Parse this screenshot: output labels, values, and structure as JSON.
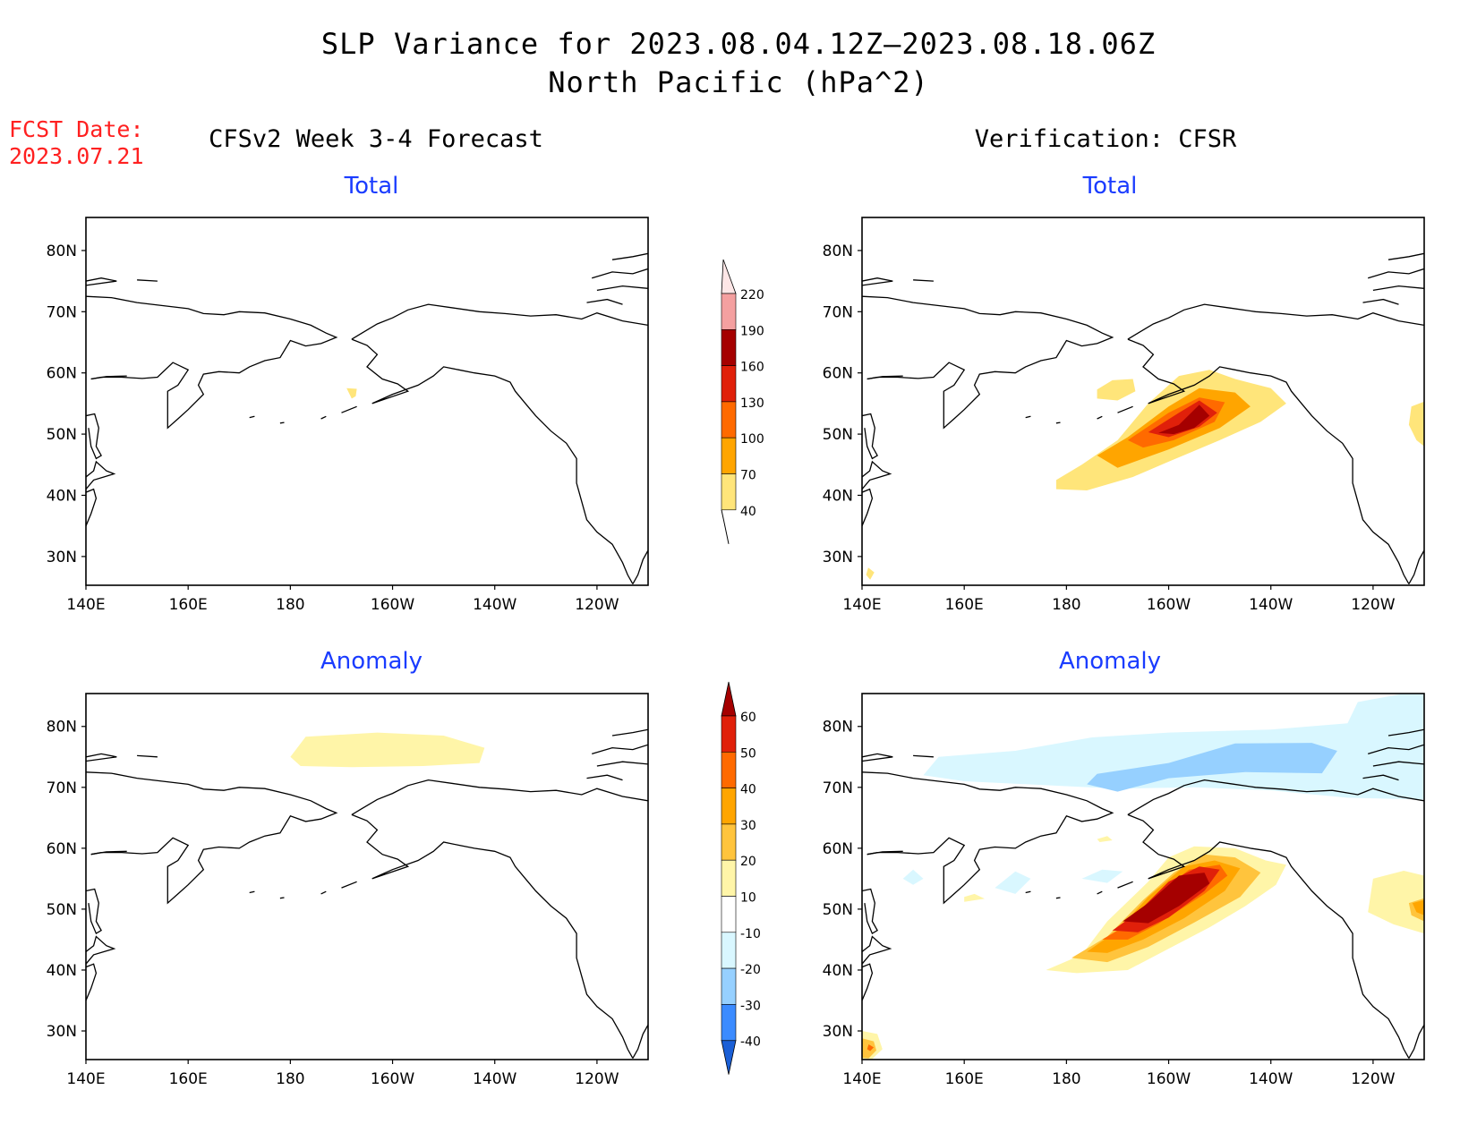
{
  "header": {
    "title_line1": "SLP Variance for 2023.08.04.12Z–2023.08.18.06Z",
    "title_line2": "North Pacific (hPa^2)"
  },
  "fcst_date": {
    "label": "FCST Date:",
    "value": "2023.07.21"
  },
  "columns": {
    "left": "CFSv2 Week 3-4 Forecast",
    "right": "Verification: CFSR"
  },
  "panels": {
    "total_label": "Total",
    "anomaly_label": "Anomaly",
    "lat_ticks": [
      "80N",
      "70N",
      "60N",
      "50N",
      "40N",
      "30N"
    ],
    "lon_ticks": [
      "140E",
      "160E",
      "180",
      "160W",
      "140W",
      "120W"
    ]
  },
  "colorbars": {
    "total": {
      "labels": [
        "220",
        "190",
        "160",
        "130",
        "100",
        "70",
        "40"
      ],
      "colors": [
        "#fde6e6",
        "#f4a0a0",
        "#a50000",
        "#e0200a",
        "#ff6a00",
        "#ffa500",
        "#ffe57a"
      ]
    },
    "anomaly": {
      "labels": [
        "60",
        "50",
        "40",
        "30",
        "20",
        "10",
        "-10",
        "-20",
        "-30",
        "-40"
      ],
      "colors": [
        "#a50000",
        "#e0200a",
        "#ff6a00",
        "#ffa500",
        "#ffc43d",
        "#fff5a8",
        "#ffffff",
        "#d9f7ff",
        "#96d0ff",
        "#3b8bff",
        "#1a5fd6"
      ]
    }
  },
  "map_colors": {
    "yellow": "#ffe57a",
    "light_yellow": "#fff5a8",
    "orange": "#ffa500",
    "dark_orange": "#ff6a00",
    "red": "#e0200a",
    "dark_red": "#a50000",
    "light_blue": "#d9f7ff",
    "mid_blue": "#96d0ff"
  }
}
